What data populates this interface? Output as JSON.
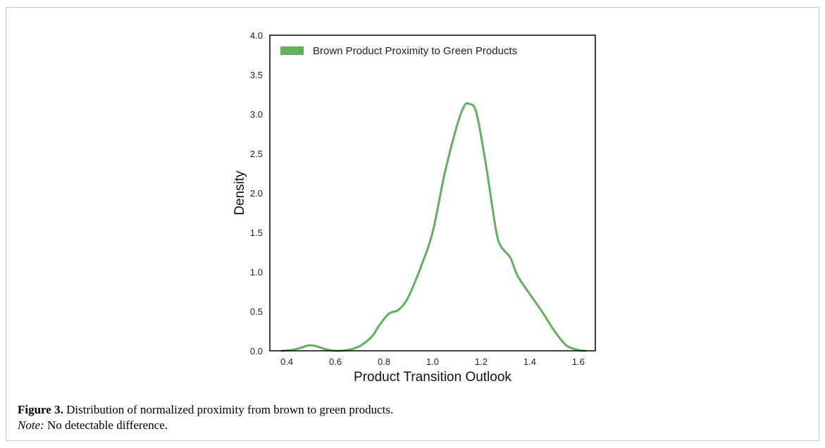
{
  "chart_data": {
    "type": "line",
    "xlabel": "Product Transition Outlook",
    "ylabel": "Density",
    "xlim": [
      0.33,
      1.67
    ],
    "ylim": [
      0.0,
      4.0
    ],
    "xticks": [
      "0.4",
      "0.6",
      "0.8",
      "1.0",
      "1.2",
      "1.4",
      "1.6"
    ],
    "yticks": [
      "0.0",
      "0.5",
      "1.0",
      "1.5",
      "2.0",
      "2.5",
      "3.0",
      "3.5",
      "4.0"
    ],
    "grid": false,
    "legend_position": "top-left",
    "series": [
      {
        "name": "Brown Product Proximity to Green Products",
        "color": "#5fb05f",
        "x": [
          0.38,
          0.42,
          0.46,
          0.49,
          0.52,
          0.56,
          0.6,
          0.65,
          0.7,
          0.75,
          0.78,
          0.82,
          0.86,
          0.9,
          0.95,
          1.0,
          1.05,
          1.1,
          1.13,
          1.15,
          1.18,
          1.22,
          1.26,
          1.28,
          1.32,
          1.35,
          1.4,
          1.45,
          1.5,
          1.55,
          1.6,
          1.63
        ],
        "y": [
          0.0,
          0.01,
          0.04,
          0.07,
          0.06,
          0.02,
          0.0,
          0.01,
          0.06,
          0.18,
          0.32,
          0.47,
          0.52,
          0.68,
          1.05,
          1.5,
          2.25,
          2.85,
          3.1,
          3.13,
          3.02,
          2.35,
          1.55,
          1.33,
          1.18,
          0.95,
          0.72,
          0.5,
          0.26,
          0.07,
          0.01,
          0.0
        ]
      }
    ]
  },
  "caption": {
    "label": "Figure 3.",
    "text": " Distribution of normalized proximity from brown to green products.",
    "note_label": "Note:",
    "note_text": " No detectable difference."
  }
}
